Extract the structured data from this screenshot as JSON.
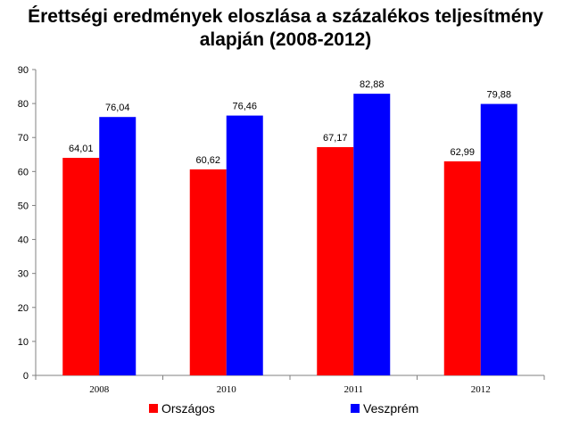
{
  "chart_data": {
    "type": "bar",
    "title_lines": [
      "Érettségi eredmények eloszlása a százalékos teljesítmény",
      "alapján (2008-2012)"
    ],
    "categories": [
      "2008",
      "2010",
      "2011",
      "2012"
    ],
    "series": [
      {
        "name": "Országos",
        "color": "#ff0000",
        "values": [
          64.01,
          60.62,
          67.17,
          62.99
        ],
        "labels": [
          "64,01",
          "60,62",
          "67,17",
          "62,99"
        ]
      },
      {
        "name": "Veszprém",
        "color": "#0000ff",
        "values": [
          76.04,
          76.46,
          82.88,
          79.88
        ],
        "labels": [
          "76,04",
          "76,46",
          "82,88",
          "79,88"
        ]
      }
    ],
    "ylim": [
      0,
      90
    ],
    "yticks": [
      0,
      10,
      20,
      30,
      40,
      50,
      60,
      70,
      80,
      90
    ],
    "grid": false,
    "legend_position": "bottom"
  }
}
